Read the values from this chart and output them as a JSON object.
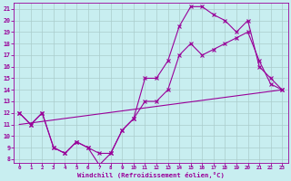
{
  "xlabel": "Windchill (Refroidissement éolien,°C)",
  "bg_color": "#c8eef0",
  "line_color": "#990099",
  "grid_color": "#aacccc",
  "xlim_min": -0.5,
  "xlim_max": 23.5,
  "ylim_min": 7.7,
  "ylim_max": 21.5,
  "xticks": [
    0,
    1,
    2,
    3,
    4,
    5,
    6,
    7,
    8,
    9,
    10,
    11,
    12,
    13,
    14,
    15,
    16,
    17,
    18,
    19,
    20,
    21,
    22,
    23
  ],
  "yticks": [
    8,
    9,
    10,
    11,
    12,
    13,
    14,
    15,
    16,
    17,
    18,
    19,
    20,
    21
  ],
  "curve1_x": [
    0,
    1,
    2,
    3,
    4,
    5,
    6,
    7,
    8,
    9,
    10,
    11,
    12,
    13,
    14,
    15,
    16,
    17,
    18,
    19,
    20,
    21,
    22,
    23
  ],
  "curve1_y": [
    12,
    11,
    12,
    9,
    8.5,
    9.5,
    9,
    7.5,
    8.5,
    10.5,
    11.5,
    15,
    15,
    16.5,
    19.5,
    21.2,
    21.2,
    20.5,
    20,
    19,
    20,
    16,
    15,
    14
  ],
  "curve2_x": [
    0,
    1,
    2,
    3,
    4,
    5,
    6,
    7,
    8,
    9,
    10,
    11,
    12,
    13,
    14,
    15,
    16,
    17,
    18,
    19,
    20,
    21,
    22,
    23
  ],
  "curve2_y": [
    12,
    11,
    12,
    9,
    8.5,
    9.5,
    9,
    8.5,
    8.5,
    10.5,
    11.5,
    13,
    13,
    14,
    17,
    18,
    17,
    17.5,
    18,
    18.5,
    19,
    16.5,
    14.5,
    14
  ],
  "line_x": [
    0,
    23
  ],
  "line_y": [
    11,
    14
  ]
}
